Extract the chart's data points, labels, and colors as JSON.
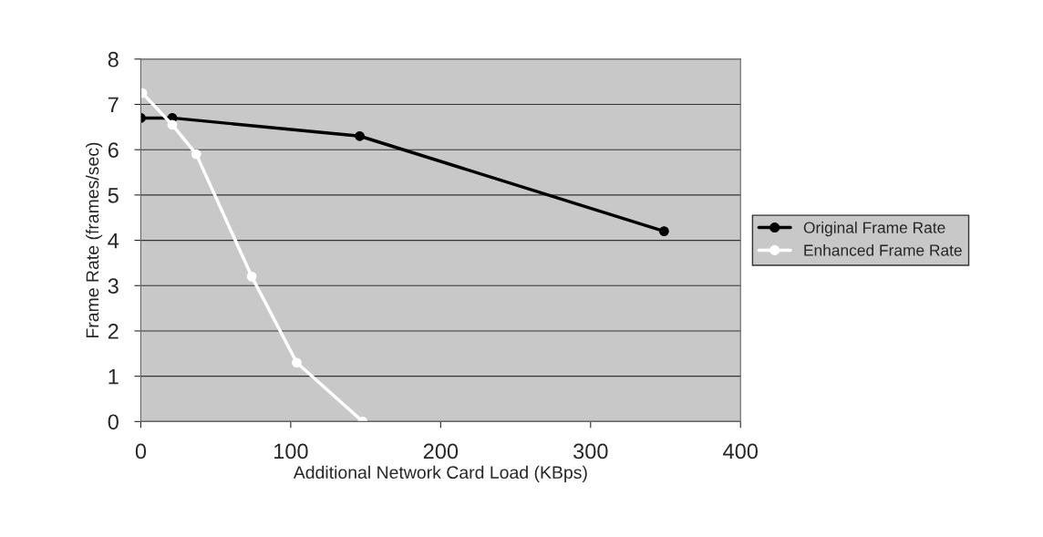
{
  "chart_data": {
    "type": "line",
    "xlabel": "Additional Network Card Load (KBps)",
    "ylabel": "Frame Rate (frames/sec)",
    "series": [
      {
        "name": "Original Frame Rate",
        "color": "#000000",
        "x": [
          0,
          21,
          146,
          349
        ],
        "values": [
          6.7,
          6.7,
          6.3,
          4.2
        ]
      },
      {
        "name": "Enhanced Frame Rate",
        "color": "#ffffff",
        "x": [
          1,
          21,
          37,
          74,
          104,
          148
        ],
        "values": [
          7.25,
          6.55,
          5.9,
          3.2,
          1.3,
          0
        ]
      }
    ],
    "xlim": [
      0,
      400
    ],
    "xticks": [
      0,
      100,
      200,
      300,
      400
    ],
    "ylim": [
      0,
      8
    ],
    "yticks": [
      0,
      1,
      2,
      3,
      4,
      5,
      6,
      7,
      8
    ],
    "grid": "y",
    "legend": "right",
    "marker": "circle",
    "line_style": "solid"
  }
}
